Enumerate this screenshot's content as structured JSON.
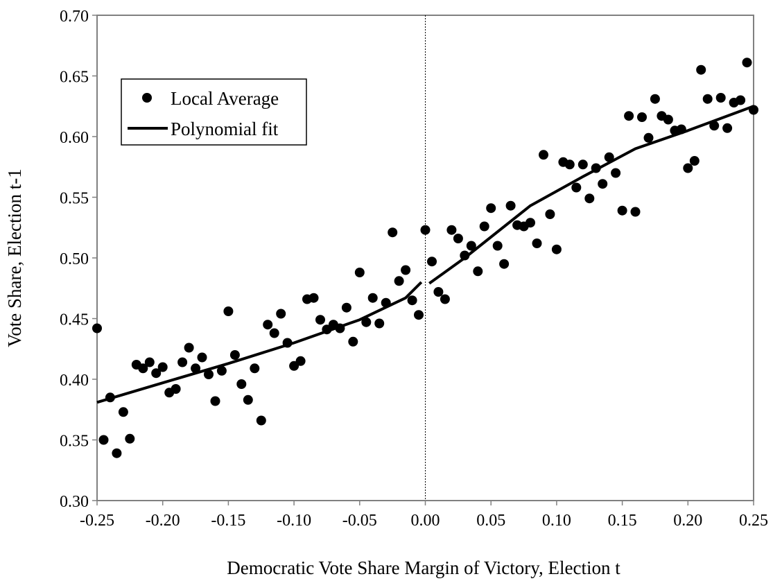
{
  "chart_data": {
    "type": "scatter",
    "title": "",
    "xlabel": "Democratic Vote Share Margin of Victory, Election t",
    "ylabel": "Vote Share, Election t-1",
    "xlim": [
      -0.25,
      0.25
    ],
    "ylim": [
      0.3,
      0.7
    ],
    "x_ticks": [
      "-0.25",
      "-0.20",
      "-0.15",
      "-0.10",
      "-0.05",
      "0.00",
      "0.05",
      "0.10",
      "0.15",
      "0.20",
      "0.25"
    ],
    "y_ticks": [
      "0.30",
      "0.35",
      "0.40",
      "0.45",
      "0.50",
      "0.55",
      "0.60",
      "0.65",
      "0.70"
    ],
    "grid": false,
    "threshold_line": 0.0,
    "legend": {
      "placement": "top-left",
      "entries": [
        "Local Average",
        "Polynomial fit"
      ]
    },
    "series": [
      {
        "name": "Local Average",
        "kind": "points",
        "points": [
          [
            -0.25,
            0.442
          ],
          [
            -0.245,
            0.35
          ],
          [
            -0.24,
            0.385
          ],
          [
            -0.235,
            0.339
          ],
          [
            -0.23,
            0.373
          ],
          [
            -0.225,
            0.351
          ],
          [
            -0.22,
            0.412
          ],
          [
            -0.215,
            0.409
          ],
          [
            -0.21,
            0.414
          ],
          [
            -0.205,
            0.405
          ],
          [
            -0.2,
            0.41
          ],
          [
            -0.195,
            0.389
          ],
          [
            -0.19,
            0.392
          ],
          [
            -0.185,
            0.414
          ],
          [
            -0.18,
            0.426
          ],
          [
            -0.175,
            0.409
          ],
          [
            -0.17,
            0.418
          ],
          [
            -0.165,
            0.404
          ],
          [
            -0.16,
            0.382
          ],
          [
            -0.155,
            0.407
          ],
          [
            -0.15,
            0.456
          ],
          [
            -0.145,
            0.42
          ],
          [
            -0.14,
            0.396
          ],
          [
            -0.135,
            0.383
          ],
          [
            -0.13,
            0.409
          ],
          [
            -0.125,
            0.366
          ],
          [
            -0.12,
            0.445
          ],
          [
            -0.115,
            0.438
          ],
          [
            -0.11,
            0.454
          ],
          [
            -0.105,
            0.43
          ],
          [
            -0.1,
            0.411
          ],
          [
            -0.095,
            0.415
          ],
          [
            -0.09,
            0.466
          ],
          [
            -0.085,
            0.467
          ],
          [
            -0.08,
            0.449
          ],
          [
            -0.075,
            0.441
          ],
          [
            -0.07,
            0.445
          ],
          [
            -0.065,
            0.442
          ],
          [
            -0.06,
            0.459
          ],
          [
            -0.055,
            0.431
          ],
          [
            -0.05,
            0.488
          ],
          [
            -0.045,
            0.447
          ],
          [
            -0.04,
            0.467
          ],
          [
            -0.035,
            0.446
          ],
          [
            -0.03,
            0.463
          ],
          [
            -0.025,
            0.521
          ],
          [
            -0.02,
            0.481
          ],
          [
            -0.015,
            0.49
          ],
          [
            -0.01,
            0.465
          ],
          [
            -0.005,
            0.453
          ],
          [
            0.0,
            0.523
          ],
          [
            0.005,
            0.497
          ],
          [
            0.01,
            0.472
          ],
          [
            0.015,
            0.466
          ],
          [
            0.02,
            0.523
          ],
          [
            0.025,
            0.516
          ],
          [
            0.03,
            0.502
          ],
          [
            0.035,
            0.51
          ],
          [
            0.04,
            0.489
          ],
          [
            0.045,
            0.526
          ],
          [
            0.05,
            0.541
          ],
          [
            0.055,
            0.51
          ],
          [
            0.06,
            0.495
          ],
          [
            0.065,
            0.543
          ],
          [
            0.07,
            0.527
          ],
          [
            0.075,
            0.526
          ],
          [
            0.08,
            0.529
          ],
          [
            0.085,
            0.512
          ],
          [
            0.09,
            0.585
          ],
          [
            0.095,
            0.536
          ],
          [
            0.1,
            0.507
          ],
          [
            0.105,
            0.579
          ],
          [
            0.11,
            0.577
          ],
          [
            0.115,
            0.558
          ],
          [
            0.12,
            0.577
          ],
          [
            0.125,
            0.549
          ],
          [
            0.13,
            0.574
          ],
          [
            0.135,
            0.561
          ],
          [
            0.14,
            0.583
          ],
          [
            0.145,
            0.57
          ],
          [
            0.15,
            0.539
          ],
          [
            0.155,
            0.617
          ],
          [
            0.16,
            0.538
          ],
          [
            0.165,
            0.616
          ],
          [
            0.17,
            0.599
          ],
          [
            0.175,
            0.631
          ],
          [
            0.18,
            0.617
          ],
          [
            0.185,
            0.614
          ],
          [
            0.19,
            0.605
          ],
          [
            0.195,
            0.606
          ],
          [
            0.2,
            0.574
          ],
          [
            0.205,
            0.58
          ],
          [
            0.21,
            0.655
          ],
          [
            0.215,
            0.631
          ],
          [
            0.22,
            0.609
          ],
          [
            0.225,
            0.632
          ],
          [
            0.23,
            0.607
          ],
          [
            0.235,
            0.628
          ],
          [
            0.24,
            0.63
          ],
          [
            0.245,
            0.661
          ],
          [
            0.25,
            0.622
          ]
        ]
      },
      {
        "name": "Polynomial fit",
        "kind": "line",
        "segments": [
          [
            [
              -0.25,
              0.381
            ],
            [
              -0.2,
              0.397
            ],
            [
              -0.15,
              0.413
            ],
            [
              -0.1,
              0.43
            ],
            [
              -0.05,
              0.449
            ],
            [
              -0.015,
              0.467
            ],
            [
              -0.003,
              0.48
            ]
          ],
          [
            [
              0.003,
              0.479
            ],
            [
              0.03,
              0.5
            ],
            [
              0.08,
              0.543
            ],
            [
              0.12,
              0.567
            ],
            [
              0.16,
              0.59
            ],
            [
              0.2,
              0.605
            ],
            [
              0.25,
              0.625
            ]
          ]
        ]
      }
    ]
  }
}
